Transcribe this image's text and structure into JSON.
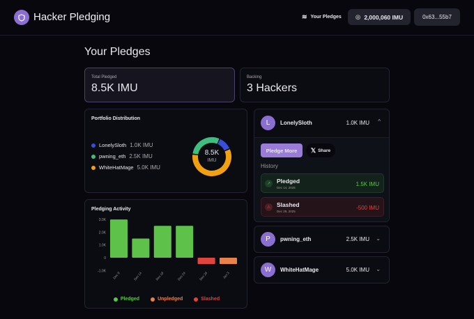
{
  "header": {
    "title": "Hacker Pledging",
    "nav_label": "Your Pledges",
    "balance": "2,000,060 IMU",
    "wallet": "0x63...55b7"
  },
  "page_title": "Your Pledges",
  "stats": [
    {
      "label": "Total Pledged",
      "value": "8.5K IMU"
    },
    {
      "label": "Backing",
      "value": "3 Hackers"
    }
  ],
  "portfolio": {
    "title": "Portfolio Distribution",
    "center_value": "8.5K",
    "center_unit": "IMU",
    "items": [
      {
        "name": "LonelySloth",
        "amount": "1.0K IMU",
        "value": 1000,
        "color": "#3b4ddb"
      },
      {
        "name": "pwning_eth",
        "amount": "2.5K IMU",
        "value": 2500,
        "color": "#3fbf7f"
      },
      {
        "name": "WhiteHatMage",
        "amount": "5.0K IMU",
        "value": 5000,
        "color": "#f0a010"
      }
    ]
  },
  "chart_data": {
    "type": "bar",
    "title": "Pledging Activity",
    "categories": [
      "Dec 9",
      "Dec 14",
      "Dec 19",
      "Dec 24",
      "Dec 29",
      "Jan 3"
    ],
    "values": [
      3000,
      1500,
      2500,
      2500,
      -500,
      -500
    ],
    "kinds": [
      "Pledged",
      "Pledged",
      "Pledged",
      "Pledged",
      "Slashed",
      "Unpledged"
    ],
    "yticks": [
      "3.0K",
      "2.0K",
      "1.0K",
      "0",
      "-1.0K"
    ],
    "ylim": [
      -1000,
      3000
    ],
    "legend": [
      {
        "label": "Pledged",
        "color": "#5ec24a"
      },
      {
        "label": "Unpledged",
        "color": "#e8824a"
      },
      {
        "label": "Slashed",
        "color": "#e0443e"
      }
    ]
  },
  "hackers": [
    {
      "initial": "L",
      "name": "LonelySloth",
      "amount": "1.0K IMU",
      "expanded": true,
      "pledge_more": "Pledge More",
      "share": "Share",
      "history_label": "History",
      "history": [
        {
          "type": "Pledged",
          "date": "Dec 14, 2025",
          "amount": "1.5K IMU"
        },
        {
          "type": "Slashed",
          "date": "Dec 29, 2025",
          "amount": "-500 IMU"
        }
      ]
    },
    {
      "initial": "P",
      "name": "pwning_eth",
      "amount": "2.5K IMU"
    },
    {
      "initial": "W",
      "name": "WhiteHatMage",
      "amount": "5.0K IMU"
    }
  ]
}
